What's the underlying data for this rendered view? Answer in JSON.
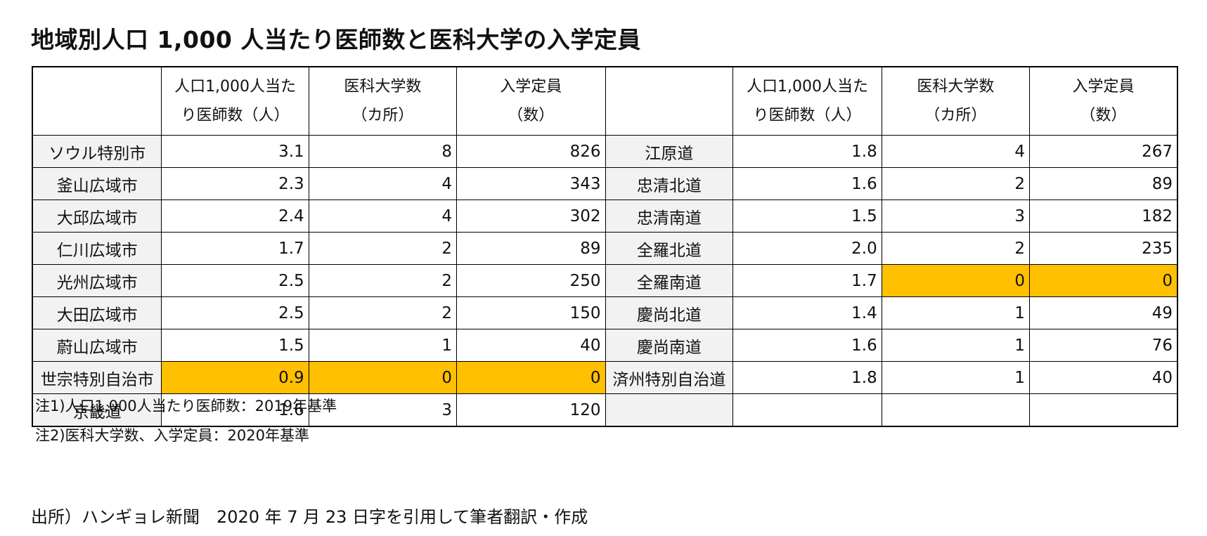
{
  "title": "地域別人口 1,000 人当たり医師数と医科大学の入学定員",
  "chart_data": {
    "type": "table",
    "columns": [
      {
        "line1": "人口1,000人当た",
        "line2": "り医師数（人）"
      },
      {
        "line1": "医科大学数",
        "line2": "（カ所）"
      },
      {
        "line1": "入学定員",
        "line2": "（数）"
      }
    ],
    "left": [
      {
        "region": "ソウル特別市",
        "doctors": "3.1",
        "universities": "8",
        "quota": "826"
      },
      {
        "region": "釜山広域市",
        "doctors": "2.3",
        "universities": "4",
        "quota": "343"
      },
      {
        "region": "大邱広域市",
        "doctors": "2.4",
        "universities": "4",
        "quota": "302"
      },
      {
        "region": "仁川広域市",
        "doctors": "1.7",
        "universities": "2",
        "quota": "89"
      },
      {
        "region": "光州広域市",
        "doctors": "2.5",
        "universities": "2",
        "quota": "250"
      },
      {
        "region": "大田広域市",
        "doctors": "2.5",
        "universities": "2",
        "quota": "150"
      },
      {
        "region": "蔚山広域市",
        "doctors": "1.5",
        "universities": "1",
        "quota": "40"
      },
      {
        "region": "世宗特別自治市",
        "doctors": "0.9",
        "universities": "0",
        "quota": "0"
      },
      {
        "region": "京畿道",
        "doctors": "1.6",
        "universities": "3",
        "quota": "120"
      }
    ],
    "right": [
      {
        "region": "江原道",
        "doctors": "1.8",
        "universities": "4",
        "quota": "267"
      },
      {
        "region": "忠清北道",
        "doctors": "1.6",
        "universities": "2",
        "quota": "89"
      },
      {
        "region": "忠清南道",
        "doctors": "1.5",
        "universities": "3",
        "quota": "182"
      },
      {
        "region": "全羅北道",
        "doctors": "2.0",
        "universities": "2",
        "quota": "235"
      },
      {
        "region": "全羅南道",
        "doctors": "1.7",
        "universities": "0",
        "quota": "0"
      },
      {
        "region": "慶尚北道",
        "doctors": "1.4",
        "universities": "1",
        "quota": "49"
      },
      {
        "region": "慶尚南道",
        "doctors": "1.6",
        "universities": "1",
        "quota": "76"
      },
      {
        "region": "済州特別自治道",
        "doctors": "1.8",
        "universities": "1",
        "quota": "40"
      },
      {
        "region": "",
        "doctors": "",
        "universities": "",
        "quota": ""
      }
    ],
    "highlight_color": "#ffc000",
    "region_cell_color": "#f2f2f2"
  },
  "notes": [
    "注1)人口1,000人当たり医師数：2019年基準",
    "注2)医科大学数、入学定員：2020年基準"
  ],
  "source": "出所）ハンギョレ新聞　2020 年 7 月 23 日字を引用して筆者翻訳・作成"
}
